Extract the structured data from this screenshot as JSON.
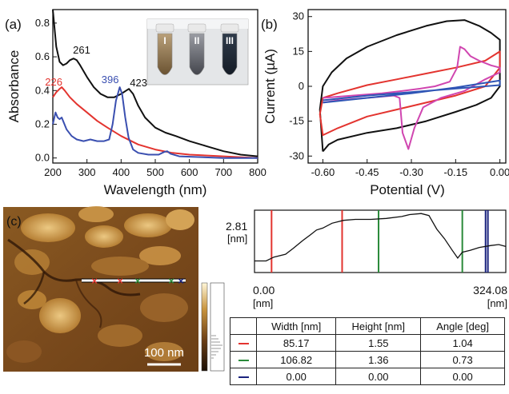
{
  "chart_data": [
    {
      "panel_label": "(a)",
      "type": "line",
      "xlabel": "Wavelength (nm)",
      "ylabel": "Absorbance",
      "xlim": [
        200,
        800
      ],
      "ylim": [
        -0.03,
        0.88
      ],
      "x_ticks": [
        "200",
        "300",
        "400",
        "500",
        "600",
        "700",
        "800"
      ],
      "y_ticks": [
        "0.0",
        "0.2",
        "0.4",
        "0.6",
        "0.8"
      ],
      "grid": false,
      "series": [
        {
          "color": "#111111",
          "points": [
            [
              200,
              0.9
            ],
            [
              210,
              0.66
            ],
            [
              220,
              0.57
            ],
            [
              230,
              0.55
            ],
            [
              240,
              0.56
            ],
            [
              250,
              0.58
            ],
            [
              261,
              0.59
            ],
            [
              270,
              0.58
            ],
            [
              280,
              0.55
            ],
            [
              300,
              0.48
            ],
            [
              320,
              0.42
            ],
            [
              340,
              0.38
            ],
            [
              360,
              0.36
            ],
            [
              380,
              0.36
            ],
            [
              400,
              0.38
            ],
            [
              415,
              0.4
            ],
            [
              423,
              0.41
            ],
            [
              435,
              0.38
            ],
            [
              450,
              0.31
            ],
            [
              470,
              0.24
            ],
            [
              500,
              0.18
            ],
            [
              530,
              0.15
            ],
            [
              560,
              0.13
            ],
            [
              600,
              0.1
            ],
            [
              650,
              0.07
            ],
            [
              700,
              0.04
            ],
            [
              750,
              0.02
            ],
            [
              800,
              0.01
            ]
          ]
        },
        {
          "color": "#e3342f",
          "points": [
            [
              200,
              0.36
            ],
            [
              210,
              0.39
            ],
            [
              220,
              0.41
            ],
            [
              226,
              0.42
            ],
            [
              235,
              0.4
            ],
            [
              250,
              0.36
            ],
            [
              270,
              0.32
            ],
            [
              300,
              0.27
            ],
            [
              330,
              0.22
            ],
            [
              360,
              0.18
            ],
            [
              400,
              0.13
            ],
            [
              450,
              0.08
            ],
            [
              500,
              0.05
            ],
            [
              550,
              0.03
            ],
            [
              600,
              0.02
            ],
            [
              700,
              0.01
            ],
            [
              800,
              0.0
            ]
          ]
        },
        {
          "color": "#3a4fb0",
          "points": [
            [
              200,
              0.2
            ],
            [
              208,
              0.27
            ],
            [
              214,
              0.24
            ],
            [
              220,
              0.23
            ],
            [
              226,
              0.24
            ],
            [
              232,
              0.21
            ],
            [
              240,
              0.17
            ],
            [
              255,
              0.13
            ],
            [
              270,
              0.11
            ],
            [
              290,
              0.1
            ],
            [
              310,
              0.11
            ],
            [
              330,
              0.1
            ],
            [
              350,
              0.1
            ],
            [
              365,
              0.11
            ],
            [
              375,
              0.2
            ],
            [
              385,
              0.34
            ],
            [
              396,
              0.42
            ],
            [
              403,
              0.38
            ],
            [
              412,
              0.24
            ],
            [
              422,
              0.12
            ],
            [
              435,
              0.05
            ],
            [
              450,
              0.03
            ],
            [
              480,
              0.02
            ],
            [
              510,
              0.02
            ],
            [
              525,
              0.035
            ],
            [
              535,
              0.04
            ],
            [
              545,
              0.025
            ],
            [
              570,
              0.01
            ],
            [
              700,
              0.0
            ],
            [
              800,
              0.0
            ]
          ]
        }
      ],
      "annotations": [
        {
          "text": "261",
          "color": "#111111",
          "x": 261,
          "y": 0.59
        },
        {
          "text": "226",
          "color": "#e3342f",
          "x": 226,
          "y": 0.42
        },
        {
          "text": "396",
          "color": "#3a4fb0",
          "x": 396,
          "y": 0.42
        },
        {
          "text": "423",
          "color": "#111111",
          "x": 423,
          "y": 0.41
        }
      ],
      "inset_labels": [
        "I",
        "II",
        "III"
      ]
    },
    {
      "panel_label": "(b)",
      "type": "line",
      "xlabel": "Potential (V)",
      "ylabel": "Current (µA)",
      "xlim": [
        -0.65,
        0.02
      ],
      "ylim": [
        -33,
        33
      ],
      "x_ticks": [
        "-0.60",
        "-0.45",
        "-0.30",
        "-0.15",
        "0.00"
      ],
      "y_ticks": [
        "30",
        "15",
        "0",
        "-15",
        "-30"
      ],
      "grid": false,
      "series": [
        {
          "color": "#111111",
          "points": [
            [
              -0.6,
              -28
            ],
            [
              -0.58,
              -25
            ],
            [
              -0.55,
              -23
            ],
            [
              -0.45,
              -20
            ],
            [
              -0.35,
              -18
            ],
            [
              -0.25,
              -15
            ],
            [
              -0.15,
              -11
            ],
            [
              -0.08,
              -8
            ],
            [
              -0.03,
              -5
            ],
            [
              0.0,
              0
            ],
            [
              0.0,
              20
            ],
            [
              -0.03,
              23
            ],
            [
              -0.07,
              26
            ],
            [
              -0.12,
              28.5
            ],
            [
              -0.18,
              28
            ],
            [
              -0.25,
              26
            ],
            [
              -0.35,
              22
            ],
            [
              -0.45,
              17
            ],
            [
              -0.52,
              12
            ],
            [
              -0.57,
              6
            ],
            [
              -0.6,
              0
            ],
            [
              -0.61,
              -10
            ],
            [
              -0.6,
              -28
            ]
          ]
        },
        {
          "color": "#e3342f",
          "points": [
            [
              -0.6,
              -5
            ],
            [
              -0.55,
              -3
            ],
            [
              -0.45,
              0.5
            ],
            [
              -0.35,
              3
            ],
            [
              -0.25,
              5.5
            ],
            [
              -0.15,
              8
            ],
            [
              -0.05,
              11
            ],
            [
              0.0,
              15
            ],
            [
              0.0,
              8
            ],
            [
              -0.05,
              0
            ],
            [
              -0.15,
              -4
            ],
            [
              -0.25,
              -7
            ],
            [
              -0.35,
              -10
            ],
            [
              -0.45,
              -13
            ],
            [
              -0.55,
              -18
            ],
            [
              -0.6,
              -21
            ],
            [
              -0.61,
              -12
            ],
            [
              -0.6,
              -5
            ]
          ]
        },
        {
          "color": "#d046b0",
          "points": [
            [
              -0.6,
              -5
            ],
            [
              -0.5,
              -4
            ],
            [
              -0.4,
              -3
            ],
            [
              -0.33,
              -2
            ],
            [
              -0.27,
              -1
            ],
            [
              -0.22,
              0
            ],
            [
              -0.17,
              2
            ],
            [
              -0.145,
              8
            ],
            [
              -0.135,
              17
            ],
            [
              -0.12,
              16
            ],
            [
              -0.1,
              13
            ],
            [
              -0.07,
              11
            ],
            [
              -0.03,
              9
            ],
            [
              0.0,
              8
            ],
            [
              0.0,
              6
            ],
            [
              -0.05,
              3
            ],
            [
              -0.12,
              -2
            ],
            [
              -0.2,
              -5
            ],
            [
              -0.26,
              -9
            ],
            [
              -0.29,
              -18
            ],
            [
              -0.31,
              -27
            ],
            [
              -0.33,
              -20
            ],
            [
              -0.34,
              -5
            ],
            [
              -0.36,
              -4
            ],
            [
              -0.45,
              -5
            ],
            [
              -0.55,
              -6
            ],
            [
              -0.6,
              -7
            ]
          ]
        },
        {
          "color": "#2f55b5",
          "points": [
            [
              -0.6,
              -6
            ],
            [
              -0.45,
              -4
            ],
            [
              -0.3,
              -2.5
            ],
            [
              -0.15,
              -1
            ],
            [
              0.0,
              0.5
            ],
            [
              0.0,
              2.5
            ],
            [
              -0.15,
              -0.5
            ],
            [
              -0.3,
              -3
            ],
            [
              -0.45,
              -5
            ],
            [
              -0.6,
              -7
            ]
          ]
        }
      ]
    },
    {
      "panel_label": "",
      "type": "line",
      "y_top_label": "2.81",
      "y_unit": "[nm]",
      "x_start_label": "0.00",
      "x_end_label": "324.08",
      "x_unit": "[nm]",
      "xlim": [
        0,
        324.08
      ],
      "ylim": [
        0,
        2.81
      ],
      "series": [
        {
          "color": "#111111",
          "points": [
            [
              0,
              0.35
            ],
            [
              15,
              0.35
            ],
            [
              25,
              0.55
            ],
            [
              40,
              0.7
            ],
            [
              50,
              1.0
            ],
            [
              62,
              1.4
            ],
            [
              72,
              1.7
            ],
            [
              80,
              1.95
            ],
            [
              88,
              2.05
            ],
            [
              100,
              2.3
            ],
            [
              115,
              2.45
            ],
            [
              130,
              2.5
            ],
            [
              150,
              2.5
            ],
            [
              170,
              2.55
            ],
            [
              190,
              2.65
            ],
            [
              200,
              2.75
            ],
            [
              215,
              2.8
            ],
            [
              225,
              2.7
            ],
            [
              235,
              2.0
            ],
            [
              245,
              1.5
            ],
            [
              255,
              0.9
            ],
            [
              262,
              0.5
            ],
            [
              268,
              0.8
            ],
            [
              278,
              0.9
            ],
            [
              290,
              1.05
            ],
            [
              305,
              1.15
            ],
            [
              315,
              1.2
            ],
            [
              324,
              1.1
            ]
          ]
        }
      ],
      "markers": [
        {
          "color": "#e3342f",
          "x": 22
        },
        {
          "color": "#e3342f",
          "x": 113
        },
        {
          "color": "#2a8a3a",
          "x": 160
        },
        {
          "color": "#2a8a3a",
          "x": 268
        },
        {
          "color": "#1a237e",
          "x": 298
        },
        {
          "color": "#1a237e",
          "x": 301
        }
      ]
    }
  ],
  "panel_c": {
    "label": "(c)",
    "scale_bar": "100 nm"
  },
  "table": {
    "headers": [
      "",
      "Width [nm]",
      "Height [nm]",
      "Angle [deg]"
    ],
    "rows": [
      {
        "color": "#e3342f",
        "width": "85.17",
        "height": "1.55",
        "angle": "1.04"
      },
      {
        "color": "#2a8a3a",
        "width": "106.82",
        "height": "1.36",
        "angle": "0.73"
      },
      {
        "color": "#1a237e",
        "width": "0.00",
        "height": "0.00",
        "angle": "0.00"
      }
    ]
  }
}
